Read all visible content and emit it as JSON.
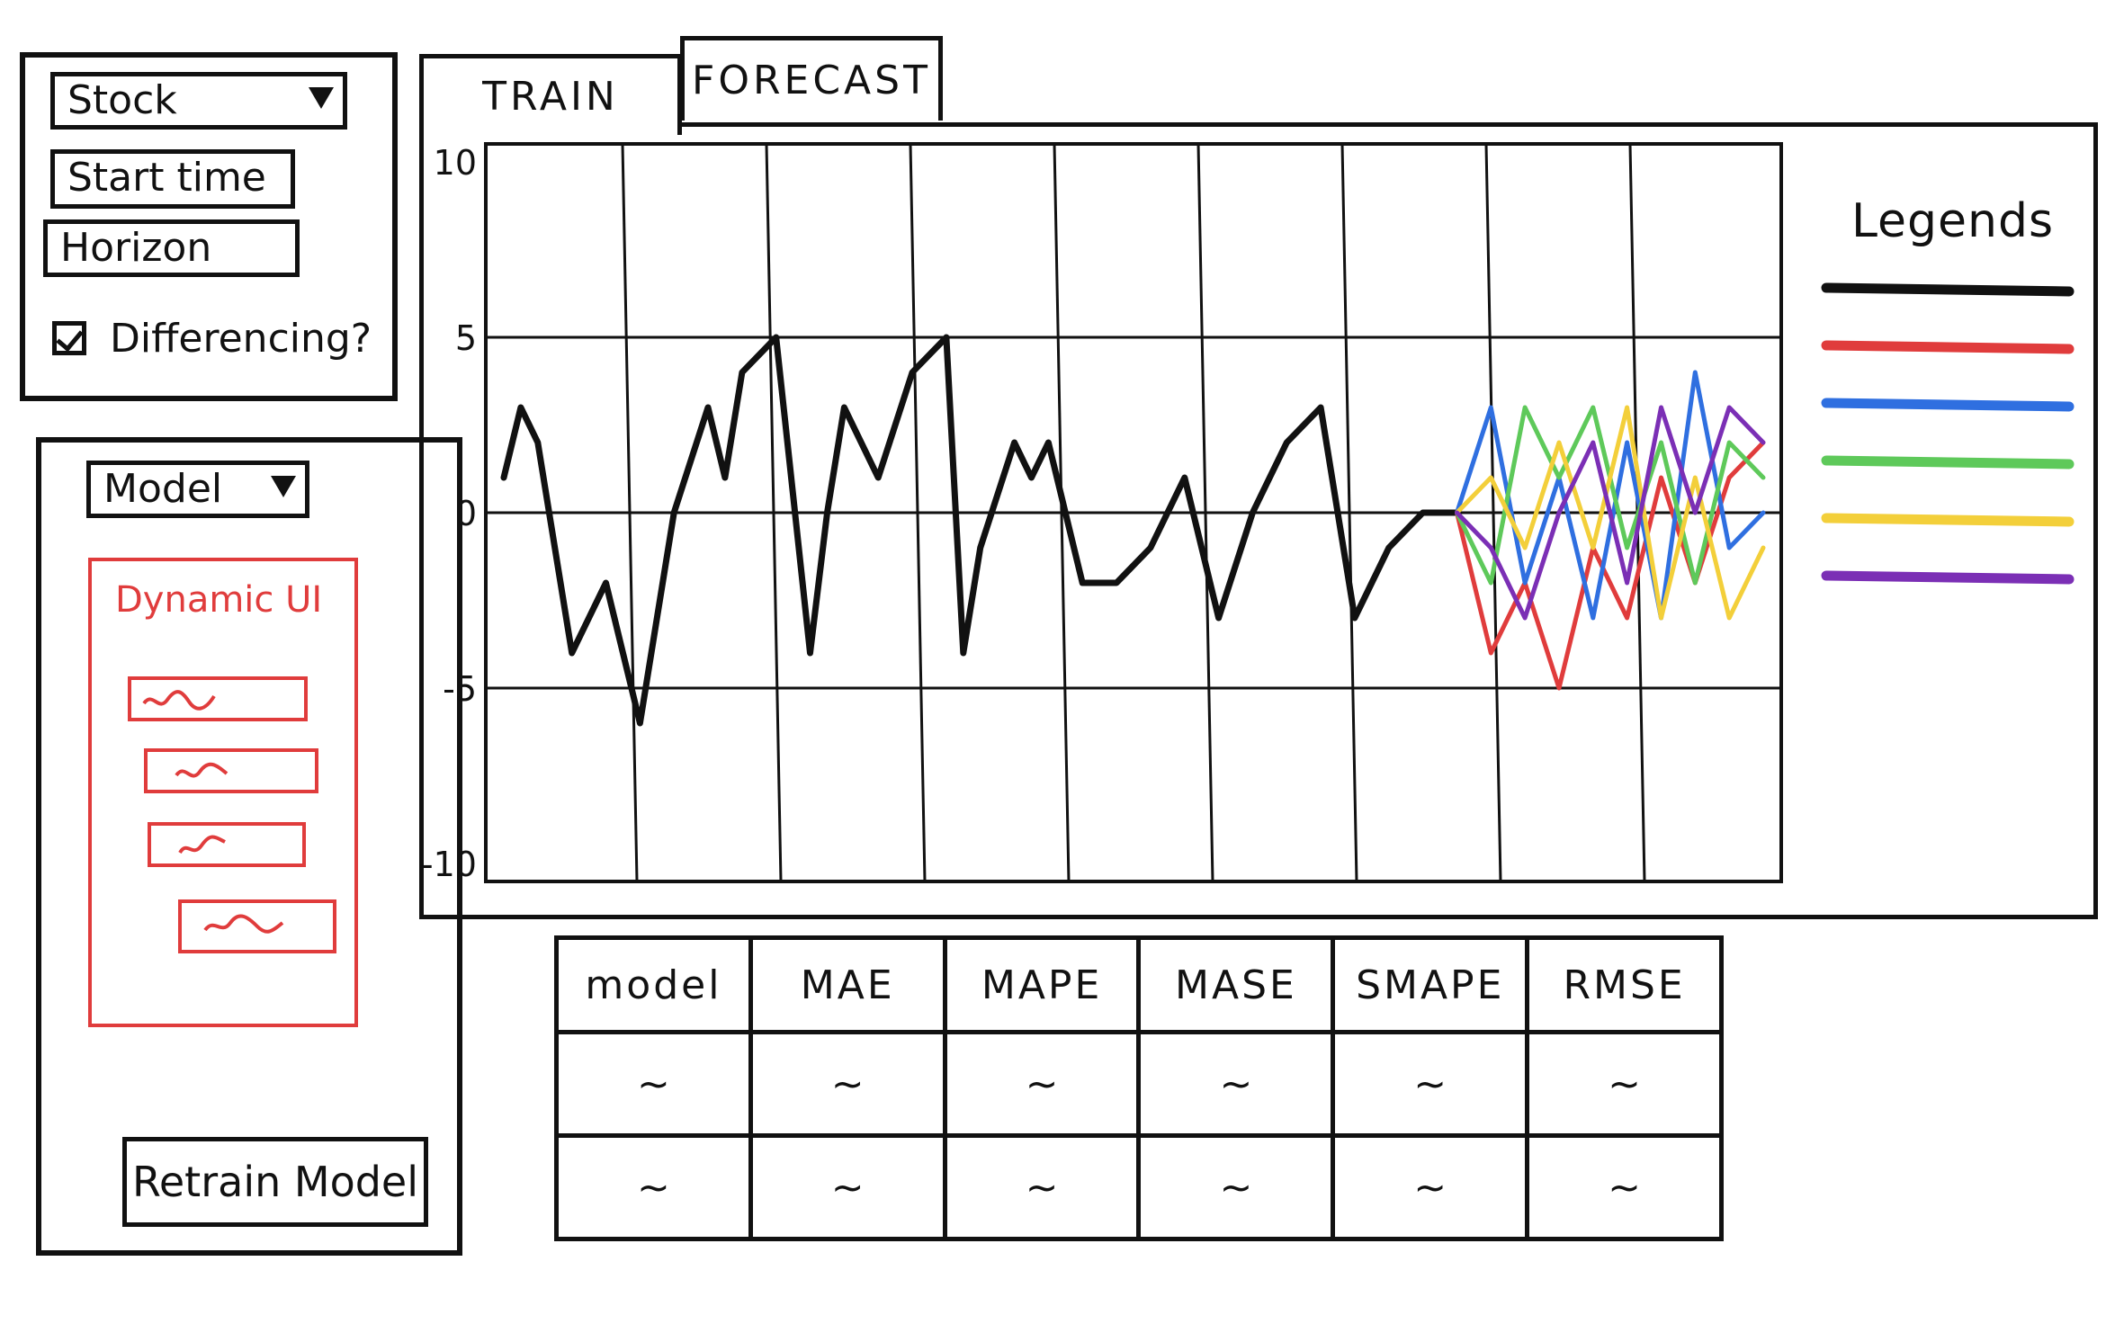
{
  "data_panel": {
    "stock_select": {
      "value": "Stock"
    },
    "start_time": {
      "value": "Start time"
    },
    "horizon": {
      "value": "Horizon"
    },
    "differencing": {
      "label": "Differencing?",
      "checked": true
    }
  },
  "model_panel": {
    "model_select": {
      "value": "Model"
    },
    "dynamic_ui": {
      "title": "Dynamic UI",
      "field_count": 4
    },
    "retrain_button": "Retrain Model"
  },
  "tabs": [
    {
      "label": "TRAIN",
      "active": true
    },
    {
      "label": "FORECAST",
      "active": false
    }
  ],
  "legend": {
    "title": "Legends",
    "swatches": [
      "#111111",
      "#e03c3c",
      "#2f6fe0",
      "#5ec95a",
      "#f3cf3a",
      "#7b2fb5"
    ]
  },
  "chart_data": {
    "type": "line",
    "ylim": [
      -10,
      10
    ],
    "y_ticks": [
      "10",
      "5",
      "0",
      "-5",
      "-10"
    ],
    "grid": true,
    "legend_position": "right",
    "series": [
      {
        "color": "#111111",
        "x": [
          0,
          0.5,
          1,
          2,
          3,
          4,
          4.5,
          5,
          6,
          6.5,
          7,
          8,
          9,
          9.5,
          10,
          11,
          12,
          13,
          13.5,
          14,
          15,
          15.5,
          16,
          17,
          18,
          19,
          20,
          21,
          22,
          23,
          24,
          25,
          26,
          27,
          28
        ],
        "y": [
          1,
          3,
          2,
          -4,
          -2,
          -6,
          -3,
          0,
          3,
          1,
          4,
          5,
          -4,
          0,
          3,
          1,
          4,
          5,
          -4,
          -1,
          2,
          1,
          2,
          -2,
          -2,
          -1,
          1,
          -3,
          0,
          2,
          3,
          -3,
          -1,
          0,
          0
        ]
      },
      {
        "color": "#e03c3c",
        "x": [
          28,
          29,
          30,
          31,
          32,
          33,
          34,
          35,
          36,
          37
        ],
        "y": [
          0,
          -4,
          -2,
          -5,
          -1,
          -3,
          1,
          -2,
          1,
          2
        ]
      },
      {
        "color": "#2f6fe0",
        "x": [
          28,
          29,
          30,
          31,
          32,
          33,
          34,
          35,
          36,
          37
        ],
        "y": [
          0,
          3,
          -2,
          1,
          -3,
          2,
          -3,
          4,
          -1,
          0
        ]
      },
      {
        "color": "#5ec95a",
        "x": [
          28,
          29,
          30,
          31,
          32,
          33,
          34,
          35,
          36,
          37
        ],
        "y": [
          0,
          -2,
          3,
          1,
          3,
          -1,
          2,
          -2,
          2,
          1
        ]
      },
      {
        "color": "#f3cf3a",
        "x": [
          28,
          29,
          30,
          31,
          32,
          33,
          34,
          35,
          36,
          37
        ],
        "y": [
          0,
          1,
          -1,
          2,
          -1,
          3,
          -3,
          1,
          -3,
          -1
        ]
      },
      {
        "color": "#7b2fb5",
        "x": [
          28,
          29,
          30,
          31,
          32,
          33,
          34,
          35,
          36,
          37
        ],
        "y": [
          0,
          -1,
          -3,
          0,
          2,
          -2,
          3,
          0,
          3,
          2
        ]
      }
    ]
  },
  "metrics_table": {
    "columns": [
      "model",
      "MAE",
      "MAPE",
      "MASE",
      "SMAPE",
      "RMSE"
    ],
    "rows": [
      [
        "~",
        "~",
        "~",
        "~",
        "~",
        "~"
      ],
      [
        "~",
        "~",
        "~",
        "~",
        "~",
        "~"
      ]
    ]
  }
}
